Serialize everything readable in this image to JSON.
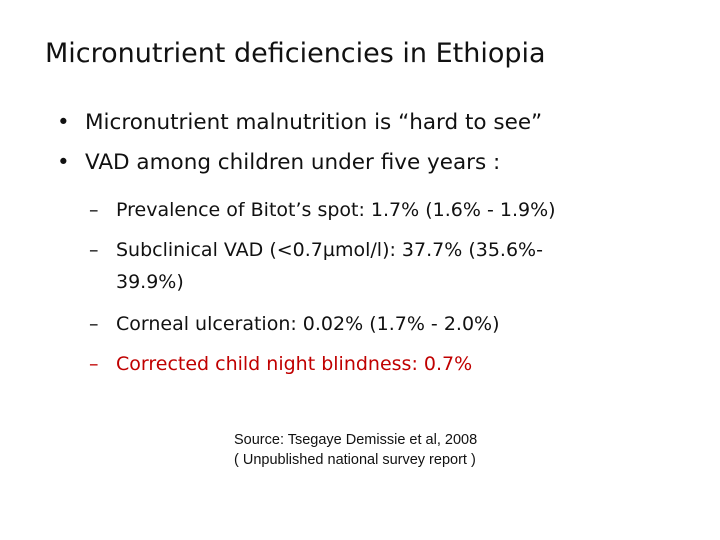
{
  "slide": {
    "title": "Micronutrient deficiencies in Ethiopia",
    "bullet_symbol": "•",
    "dash_symbol": "–",
    "bullets": [
      "Micronutrient malnutrition is “hard to see”",
      "VAD among children under five years :"
    ],
    "sub_items": [
      "Prevalence of Bitot’s spot: 1.7% (1.6% - 1.9%)",
      "Subclinical VAD (<0.7µmol/l): 37.7% (35.6%-",
      "39.9%)",
      "Corneal ulceration: 0.02% (1.7% - 2.0%)",
      "Corrected child night blindness: 0.7%"
    ],
    "highlight_color": "#c00000",
    "source_lines": [
      "Source: Tsegaye Demissie et al, 2008",
      "( Unpublished national  survey report )"
    ]
  }
}
